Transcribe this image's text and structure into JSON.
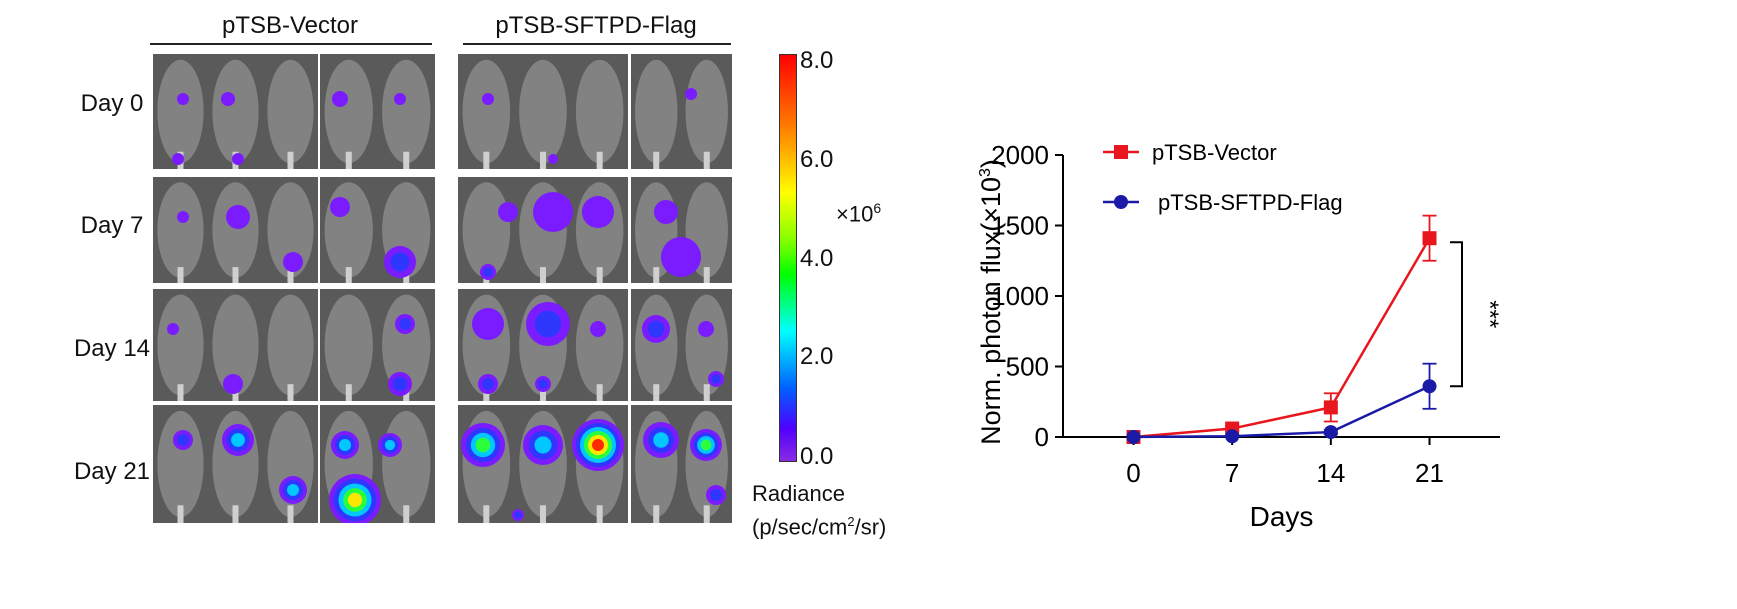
{
  "imaging": {
    "groups": [
      {
        "title": "pTSB-Vector"
      },
      {
        "title": "pTSB-SFTPD-Flag"
      }
    ],
    "days": [
      {
        "label": "Day  0"
      },
      {
        "label": "Day  7"
      },
      {
        "label": "Day  14"
      },
      {
        "label": "Day 21"
      }
    ],
    "colorbar": {
      "ticks": [
        "8.0",
        "6.0",
        "4.0",
        "2.0",
        "0.0"
      ],
      "multiplier": "×10",
      "exponent": "6",
      "unit_line1": "Radiance",
      "unit_line2_a": "(p/sec/cm",
      "unit_line2_sup": "2",
      "unit_line2_b": "/sr)",
      "colors": [
        "#ff0000",
        "#ff8c00",
        "#ffff00",
        "#00ff00",
        "#00ffff",
        "#0000ff",
        "#8a2be2"
      ]
    }
  },
  "chart_data": {
    "type": "line",
    "title": "",
    "xlabel": "Days",
    "ylabel": "Norm. photon flux(×10³)",
    "ylabel_main": "Norm. photon flux(×10",
    "ylabel_sup": "3",
    "ylabel_end": ")",
    "x": [
      0,
      7,
      14,
      21
    ],
    "x_tick_labels": [
      "0",
      "7",
      "14",
      "21"
    ],
    "y_ticks": [
      0,
      500,
      1000,
      1500,
      2000
    ],
    "y_tick_labels": [
      "0",
      "500",
      "1000",
      "1500",
      "2000"
    ],
    "ylim": [
      0,
      2000
    ],
    "xlim": [
      -5,
      26
    ],
    "grid": false,
    "legend_position": "top-left",
    "series": [
      {
        "name": "pTSB-Vector",
        "color": "#e8171e",
        "marker": "square",
        "values": [
          0,
          60,
          210,
          1410
        ],
        "errors": [
          0,
          20,
          100,
          160
        ]
      },
      {
        "name": "pTSB-SFTPD-Flag",
        "color": "#1a1aa6",
        "marker": "circle",
        "values": [
          0,
          5,
          35,
          360
        ],
        "errors": [
          0,
          5,
          15,
          160
        ]
      }
    ],
    "significance": "***"
  }
}
